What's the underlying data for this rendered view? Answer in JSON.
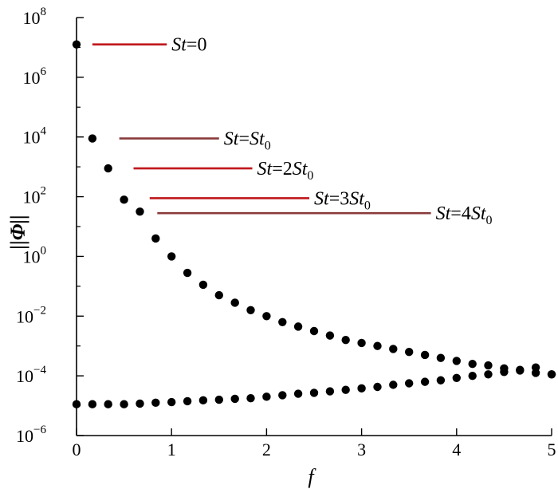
{
  "chart_data": {
    "type": "scatter",
    "xlabel": "f",
    "ylabel": "||Φ||",
    "xlim": [
      0,
      5
    ],
    "ylim_log10": [
      -6,
      8
    ],
    "yscale": "log",
    "grid": false,
    "x_ticks": [
      "0",
      "1",
      "2",
      "3",
      "4",
      "5"
    ],
    "y_ticks": [
      {
        "base": "10",
        "exp": "8",
        "value": 8
      },
      {
        "base": "10",
        "exp": "6",
        "value": 6
      },
      {
        "base": "10",
        "exp": "4",
        "value": 4
      },
      {
        "base": "10",
        "exp": "2",
        "value": 2
      },
      {
        "base": "10",
        "exp": "0",
        "value": 0
      },
      {
        "base": "10",
        "exp": "−2",
        "value": -2
      },
      {
        "base": "10",
        "exp": "−4",
        "value": -4
      },
      {
        "base": "10",
        "exp": "−6",
        "value": -6
      }
    ],
    "series": [
      {
        "marker": "filled-circle",
        "color": "#000000",
        "x": [
          0,
          0.167,
          0.333,
          0.5,
          0.667,
          0.833,
          1.0,
          1.167,
          1.333,
          1.5,
          1.667,
          1.833,
          2.0,
          2.167,
          2.333,
          2.5,
          2.667,
          2.833,
          3.0,
          3.167,
          3.333,
          3.5,
          3.667,
          3.833,
          4.0,
          4.167,
          4.333,
          4.5,
          4.667,
          4.833,
          5.0
        ],
        "y_log10": [
          7.1,
          3.95,
          2.95,
          1.9,
          1.5,
          0.6,
          0.0,
          -0.55,
          -0.95,
          -1.3,
          -1.55,
          -1.8,
          -2.0,
          -2.2,
          -2.35,
          -2.5,
          -2.65,
          -2.8,
          -2.9,
          -3.0,
          -3.1,
          -3.2,
          -3.3,
          -3.4,
          -3.5,
          -3.6,
          -3.65,
          -3.75,
          -3.82,
          -3.9,
          -3.95
        ]
      },
      {
        "marker": "filled-circle",
        "color": "#000000",
        "x": [
          0,
          0.167,
          0.333,
          0.5,
          0.667,
          0.833,
          1.0,
          1.167,
          1.333,
          1.5,
          1.667,
          1.833,
          2.0,
          2.167,
          2.333,
          2.5,
          2.667,
          2.833,
          3.0,
          3.167,
          3.333,
          3.5,
          3.667,
          3.833,
          4.0,
          4.167,
          4.333,
          4.5,
          4.667,
          4.833,
          5.0
        ],
        "y_log10": [
          -4.95,
          -4.95,
          -4.95,
          -4.95,
          -4.93,
          -4.9,
          -4.88,
          -4.85,
          -4.82,
          -4.8,
          -4.77,
          -4.75,
          -4.7,
          -4.65,
          -4.6,
          -4.57,
          -4.52,
          -4.47,
          -4.42,
          -4.37,
          -4.3,
          -4.25,
          -4.2,
          -4.15,
          -4.07,
          -4.0,
          -3.95,
          -3.87,
          -3.8,
          -3.72,
          -3.95
        ]
      }
    ],
    "annotations": [
      {
        "pre": "St",
        "mid": "=0",
        "sub": "",
        "color": "#c0171b",
        "x_start": 0.167,
        "x_end": 0.95,
        "y_log10": 7.1
      },
      {
        "pre": "St",
        "mid": "=St",
        "sub": "0",
        "color": "#8a3a3a",
        "x_start": 0.45,
        "x_end": 1.5,
        "y_log10": 3.95
      },
      {
        "pre": "St",
        "mid": "=2St",
        "sub": "0",
        "color": "#c0171b",
        "x_start": 0.6,
        "x_end": 1.85,
        "y_log10": 2.95
      },
      {
        "pre": "St",
        "mid": "=3St",
        "sub": "0",
        "color": "#c0171b",
        "x_start": 0.77,
        "x_end": 2.45,
        "y_log10": 1.95
      },
      {
        "pre": "St",
        "mid": "=4St",
        "sub": "0",
        "color": "#8a3a3a",
        "x_start": 0.85,
        "x_end": 3.73,
        "y_log10": 1.45
      }
    ]
  }
}
